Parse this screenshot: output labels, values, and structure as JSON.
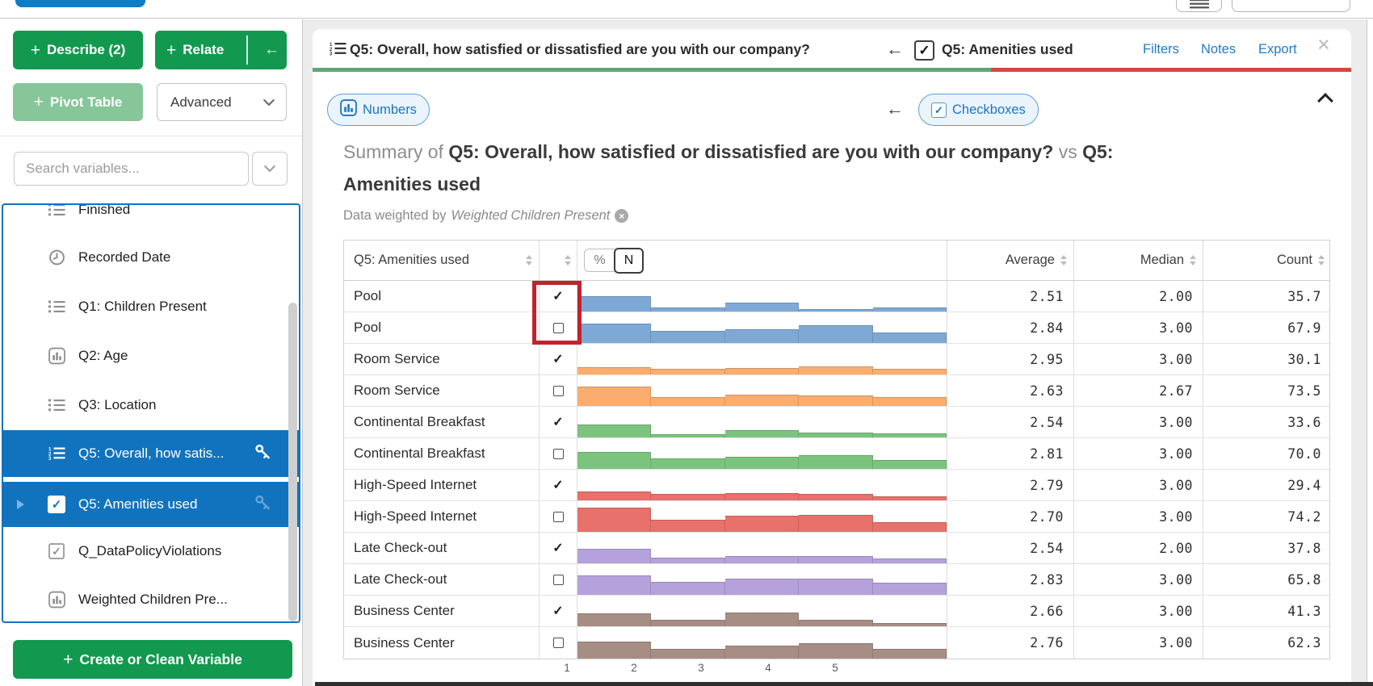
{
  "sidebar": {
    "buttons": {
      "describe": "Describe (2)",
      "relate": "Relate",
      "pivot": "Pivot Table",
      "advanced": "Advanced",
      "create": "Create or Clean Variable"
    },
    "search_placeholder": "Search variables...",
    "items": [
      {
        "label": "Finished",
        "icon": "list-icon",
        "selected": false
      },
      {
        "label": "Recorded Date",
        "icon": "clock-icon",
        "selected": false
      },
      {
        "label": "Q1: Children Present",
        "icon": "list-icon",
        "selected": false
      },
      {
        "label": "Q2: Age",
        "icon": "histogram-icon",
        "selected": false
      },
      {
        "label": "Q3: Location",
        "icon": "list-icon",
        "selected": false
      },
      {
        "label": "Q5: Overall, how satis...",
        "icon": "ordered-list-icon",
        "selected": true,
        "key_icon": true
      },
      {
        "label": "Q5: Amenities used",
        "icon": "checkbox-checked-icon",
        "selected": true,
        "key_icon": true,
        "expand_caret": true
      },
      {
        "label": "Q_DataPolicyViolations",
        "icon": "checkbox-checked-icon",
        "selected": false
      },
      {
        "label": "Weighted Children Pre...",
        "icon": "histogram-icon",
        "selected": false
      }
    ]
  },
  "card_header": {
    "row_variable": "Q5: Overall, how satisfied or dissatisfied are you with our company?",
    "col_variable": "Q5: Amenities used",
    "links": [
      "Filters",
      "Notes",
      "Export"
    ],
    "underline_colors": {
      "row": "#5ea877",
      "col": "#d8473f"
    }
  },
  "tabs": {
    "numbers": "Numbers",
    "checkboxes": "Checkboxes"
  },
  "summary": {
    "prefix": "Summary of",
    "row_title": "Q5: Overall, how satisfied or dissatisfied are you with our company?",
    "vs": "vs",
    "col_title_head": "Q5:",
    "col_title_rest": "Amenities used",
    "weight_prefix": "Data weighted by",
    "weight_name": "Weighted Children Present"
  },
  "table": {
    "first_col_header": "Q5: Amenities used",
    "unit_toggle": {
      "options": [
        "%",
        "N"
      ],
      "selected": "N"
    },
    "stat_headers": [
      "Average",
      "Median",
      "Count"
    ],
    "axis_ticks": [
      "1",
      "2",
      "3",
      "4",
      "5"
    ],
    "rows": [
      {
        "label": "Pool",
        "checked": true,
        "color": "#7ea9d6",
        "dist": [
          0.5,
          0.12,
          0.3,
          0.08,
          0.13
        ],
        "average": "2.51",
        "median": "2.00",
        "count": "35.7"
      },
      {
        "label": "Pool",
        "checked": false,
        "color": "#7ea9d6",
        "dist": [
          0.62,
          0.4,
          0.45,
          0.57,
          0.33
        ],
        "average": "2.84",
        "median": "3.00",
        "count": "67.9"
      },
      {
        "label": "Room Service",
        "checked": true,
        "color": "#fbad70",
        "dist": [
          0.24,
          0.18,
          0.22,
          0.27,
          0.18
        ],
        "average": "2.95",
        "median": "3.00",
        "count": "30.1"
      },
      {
        "label": "Room Service",
        "checked": false,
        "color": "#fbad70",
        "dist": [
          0.62,
          0.3,
          0.36,
          0.34,
          0.3
        ],
        "average": "2.63",
        "median": "2.67",
        "count": "73.5"
      },
      {
        "label": "Continental Breakfast",
        "checked": true,
        "color": "#7cc47e",
        "dist": [
          0.42,
          0.1,
          0.25,
          0.17,
          0.12
        ],
        "average": "2.54",
        "median": "3.00",
        "count": "33.6"
      },
      {
        "label": "Continental Breakfast",
        "checked": false,
        "color": "#7cc47e",
        "dist": [
          0.55,
          0.33,
          0.4,
          0.45,
          0.3
        ],
        "average": "2.81",
        "median": "3.00",
        "count": "70.0"
      },
      {
        "label": "High-Speed Internet",
        "checked": true,
        "color": "#e8716b",
        "dist": [
          0.28,
          0.2,
          0.24,
          0.22,
          0.12
        ],
        "average": "2.79",
        "median": "3.00",
        "count": "29.4"
      },
      {
        "label": "High-Speed Internet",
        "checked": false,
        "color": "#e8716b",
        "dist": [
          0.8,
          0.4,
          0.52,
          0.56,
          0.32
        ],
        "average": "2.70",
        "median": "3.00",
        "count": "74.2"
      },
      {
        "label": "Late Check-out",
        "checked": true,
        "color": "#b5a1db",
        "dist": [
          0.48,
          0.18,
          0.24,
          0.24,
          0.15
        ],
        "average": "2.54",
        "median": "2.00",
        "count": "37.8"
      },
      {
        "label": "Late Check-out",
        "checked": false,
        "color": "#b5a1db",
        "dist": [
          0.64,
          0.42,
          0.52,
          0.52,
          0.4
        ],
        "average": "2.83",
        "median": "3.00",
        "count": "65.8"
      },
      {
        "label": "Business Center",
        "checked": true,
        "color": "#a78e85",
        "dist": [
          0.42,
          0.22,
          0.46,
          0.22,
          0.1
        ],
        "average": "2.66",
        "median": "3.00",
        "count": "41.3"
      },
      {
        "label": "Business Center",
        "checked": false,
        "color": "#a78e85",
        "dist": [
          0.55,
          0.3,
          0.4,
          0.48,
          0.3
        ],
        "average": "2.76",
        "median": "3.00",
        "count": "62.3"
      }
    ]
  },
  "glyphs": {
    "plus": "+",
    "arrow_left": "←",
    "check": "✓",
    "close": "×"
  }
}
